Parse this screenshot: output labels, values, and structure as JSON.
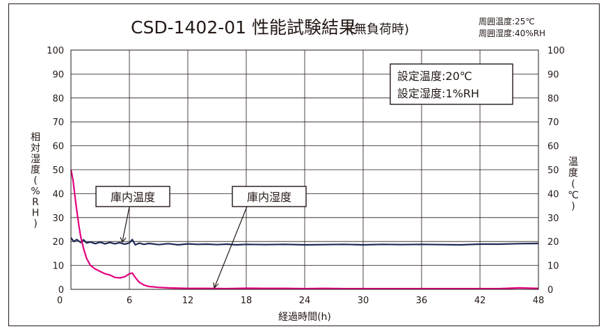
{
  "chart_data": {
    "type": "line",
    "title": "CSD-1402-01 性能試験結果",
    "subtitle": "(無負荷時)",
    "ambient": [
      "周囲温度:25℃",
      "周囲湿度:40%RH"
    ],
    "settings": [
      "設定温度:20℃",
      "設定湿度:1%RH"
    ],
    "xlabel": "経過時間(h)",
    "ylabel_left": [
      "相",
      "対",
      "湿",
      "度",
      "(",
      "%",
      "R",
      "H",
      ")"
    ],
    "ylabel_right": [
      "温",
      "度",
      "(",
      "℃",
      ")"
    ],
    "xlim": [
      0,
      48
    ],
    "ylim": [
      0,
      100
    ],
    "x_ticks": [
      0,
      6,
      12,
      18,
      24,
      30,
      36,
      42,
      48
    ],
    "y_ticks": [
      0,
      10,
      20,
      30,
      40,
      50,
      60,
      70,
      80,
      90,
      100
    ],
    "grid": true,
    "annotations": [
      {
        "text": "庫内温度",
        "series": "temperature",
        "x": 5.0,
        "y": 19.3
      },
      {
        "text": "庫内湿度",
        "series": "humidity",
        "x": 14.5,
        "y": 0.4
      }
    ],
    "series": [
      {
        "key": "temperature",
        "color": "#1d2a57",
        "x": [
          0,
          0.3,
          0.6,
          1.0,
          1.3,
          1.6,
          2,
          2.5,
          3,
          3.5,
          4,
          4.5,
          5,
          5.5,
          6,
          6.3,
          6.6,
          7,
          7.5,
          8,
          9,
          10,
          11,
          12,
          13,
          14,
          15,
          16,
          17,
          18,
          20,
          22,
          24,
          26,
          28,
          30,
          32,
          34,
          36,
          38,
          40,
          42,
          44,
          46,
          48
        ],
        "y": [
          21.5,
          20.0,
          20.8,
          19.6,
          20.7,
          19.4,
          19.8,
          19.1,
          19.7,
          19.0,
          19.6,
          19.0,
          19.5,
          18.9,
          19.4,
          20.8,
          18.6,
          19.3,
          18.8,
          19.2,
          18.7,
          19.1,
          18.6,
          19.0,
          18.8,
          18.9,
          18.7,
          18.9,
          18.6,
          18.8,
          18.7,
          18.8,
          18.6,
          18.7,
          18.8,
          18.6,
          18.8,
          18.7,
          18.8,
          18.7,
          18.6,
          18.9,
          18.9,
          19.1,
          19.2
        ]
      },
      {
        "key": "humidity",
        "color": "#e4007f",
        "x": [
          0,
          0.2,
          0.5,
          0.8,
          1.0,
          1.3,
          1.6,
          2.0,
          2.5,
          3.0,
          3.5,
          4.0,
          4.5,
          5.0,
          5.5,
          6.0,
          6.3,
          6.6,
          7.0,
          7.5,
          8,
          9,
          10,
          12,
          14,
          16,
          18,
          20,
          22,
          24,
          26,
          28,
          30,
          32,
          34,
          36,
          38,
          40,
          42,
          44,
          46,
          48
        ],
        "y": [
          50,
          46,
          36,
          27,
          22,
          17,
          13,
          10,
          8.5,
          7.5,
          6.5,
          6.0,
          5.0,
          4.8,
          5.2,
          6.5,
          6.8,
          5.0,
          3.0,
          1.8,
          1.2,
          0.8,
          0.6,
          0.4,
          0.4,
          0.3,
          0.5,
          0.4,
          0.4,
          0.3,
          0.4,
          0.3,
          0.3,
          0.3,
          0.3,
          0.3,
          0.3,
          0.3,
          0.3,
          0.3,
          0.6,
          0.4
        ]
      }
    ]
  }
}
